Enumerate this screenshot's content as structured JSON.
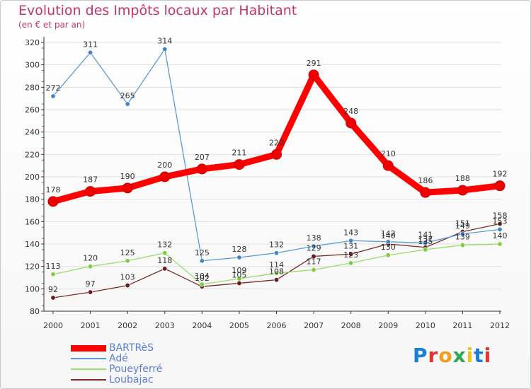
{
  "header": {
    "title": "Evolution des Impôts locaux par Habitant",
    "subtitle": "(en € et par an)"
  },
  "brand": {
    "text": "Proxiti",
    "letter_colors": [
      "#1a7fd6",
      "#e8312c",
      "#f29b1d",
      "#2fa84f",
      "#f0c419",
      "#1a7fd6",
      "#e8312c"
    ]
  },
  "colors": {
    "text": "#c8326e",
    "axis_tick_text": "#333333",
    "grid": "#e0e0e0",
    "axis": "#333333"
  },
  "chart_data": {
    "type": "line",
    "title": "Evolution des Impôts locaux par Habitant",
    "subtitle": "(en € et par an)",
    "xlabel": "",
    "ylabel": "",
    "x": [
      "2000",
      "2001",
      "2002",
      "2003",
      "2004",
      "2005",
      "2006",
      "2007",
      "2008",
      "2009",
      "2010",
      "2011",
      "2012"
    ],
    "ylim": [
      80,
      320
    ],
    "yticks": [
      "80",
      "100",
      "120",
      "140",
      "160",
      "180",
      "200",
      "220",
      "240",
      "260",
      "280",
      "300",
      "320"
    ],
    "grid": "horizontal",
    "legend_position": "bottom-left",
    "series": [
      {
        "name": "BARTRèS",
        "color": "#ff0000",
        "dot_color": "#ee0000",
        "values": [
          178,
          187,
          190,
          200,
          207,
          211,
          220,
          291,
          248,
          210,
          186,
          188,
          192
        ],
        "labels": [
          "178",
          "187",
          "190",
          "200",
          "207",
          "211",
          "220",
          "291",
          "248",
          "210",
          "186",
          "188",
          "192"
        ]
      },
      {
        "name": "Adé",
        "color": "#5b9bd5",
        "dot_color": "#3f86c8",
        "values": [
          272,
          311,
          265,
          314,
          125,
          128,
          132,
          138,
          143,
          142,
          141,
          149,
          153
        ],
        "labels": [
          "272",
          "311",
          "265",
          "314",
          "125",
          "128",
          "132",
          "138",
          "143",
          "142",
          "141",
          "149",
          "153"
        ]
      },
      {
        "name": "Poueyferré",
        "color": "#99dd66",
        "dot_color": "#7fcc44",
        "values": [
          113,
          120,
          125,
          132,
          104,
          109,
          114,
          117,
          123,
          130,
          135,
          139,
          140
        ],
        "labels": [
          "113",
          "120",
          "125",
          "132",
          "104",
          "109",
          "114",
          "117",
          "123",
          "130",
          "135",
          "139",
          "140"
        ]
      },
      {
        "name": "Loubajac",
        "color": "#7a2a2a",
        "dot_color": "#6a1a1a",
        "values": [
          92,
          97,
          103,
          118,
          102,
          105,
          108,
          129,
          131,
          140,
          137,
          151,
          158
        ],
        "labels": [
          "92",
          "97",
          "103",
          "118",
          "102",
          "105",
          "108",
          "129",
          "131",
          "140",
          "137",
          "151",
          "158"
        ]
      }
    ]
  }
}
